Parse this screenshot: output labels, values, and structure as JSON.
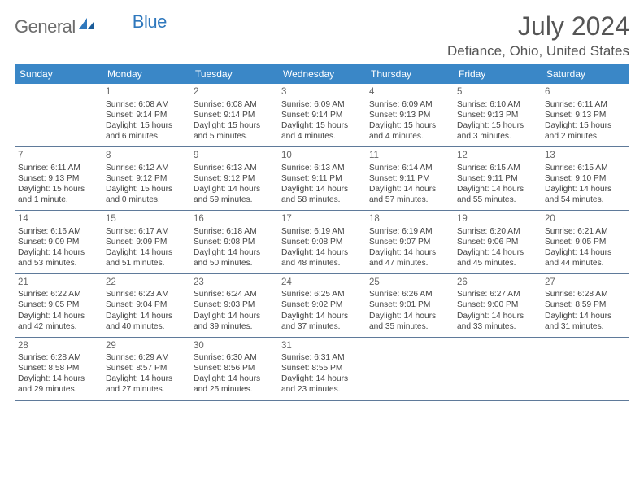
{
  "brand": {
    "left": "General",
    "right": "Blue"
  },
  "title": "July 2024",
  "location": "Defiance, Ohio, United States",
  "colors": {
    "headerBg": "#3a87c7",
    "rowBorder": "#5f7a9a"
  },
  "dayNames": [
    "Sunday",
    "Monday",
    "Tuesday",
    "Wednesday",
    "Thursday",
    "Friday",
    "Saturday"
  ],
  "weeks": [
    [
      null,
      {
        "n": "1",
        "sr": "Sunrise: 6:08 AM",
        "ss": "Sunset: 9:14 PM",
        "d1": "Daylight: 15 hours",
        "d2": "and 6 minutes."
      },
      {
        "n": "2",
        "sr": "Sunrise: 6:08 AM",
        "ss": "Sunset: 9:14 PM",
        "d1": "Daylight: 15 hours",
        "d2": "and 5 minutes."
      },
      {
        "n": "3",
        "sr": "Sunrise: 6:09 AM",
        "ss": "Sunset: 9:14 PM",
        "d1": "Daylight: 15 hours",
        "d2": "and 4 minutes."
      },
      {
        "n": "4",
        "sr": "Sunrise: 6:09 AM",
        "ss": "Sunset: 9:13 PM",
        "d1": "Daylight: 15 hours",
        "d2": "and 4 minutes."
      },
      {
        "n": "5",
        "sr": "Sunrise: 6:10 AM",
        "ss": "Sunset: 9:13 PM",
        "d1": "Daylight: 15 hours",
        "d2": "and 3 minutes."
      },
      {
        "n": "6",
        "sr": "Sunrise: 6:11 AM",
        "ss": "Sunset: 9:13 PM",
        "d1": "Daylight: 15 hours",
        "d2": "and 2 minutes."
      }
    ],
    [
      {
        "n": "7",
        "sr": "Sunrise: 6:11 AM",
        "ss": "Sunset: 9:13 PM",
        "d1": "Daylight: 15 hours",
        "d2": "and 1 minute."
      },
      {
        "n": "8",
        "sr": "Sunrise: 6:12 AM",
        "ss": "Sunset: 9:12 PM",
        "d1": "Daylight: 15 hours",
        "d2": "and 0 minutes."
      },
      {
        "n": "9",
        "sr": "Sunrise: 6:13 AM",
        "ss": "Sunset: 9:12 PM",
        "d1": "Daylight: 14 hours",
        "d2": "and 59 minutes."
      },
      {
        "n": "10",
        "sr": "Sunrise: 6:13 AM",
        "ss": "Sunset: 9:11 PM",
        "d1": "Daylight: 14 hours",
        "d2": "and 58 minutes."
      },
      {
        "n": "11",
        "sr": "Sunrise: 6:14 AM",
        "ss": "Sunset: 9:11 PM",
        "d1": "Daylight: 14 hours",
        "d2": "and 57 minutes."
      },
      {
        "n": "12",
        "sr": "Sunrise: 6:15 AM",
        "ss": "Sunset: 9:11 PM",
        "d1": "Daylight: 14 hours",
        "d2": "and 55 minutes."
      },
      {
        "n": "13",
        "sr": "Sunrise: 6:15 AM",
        "ss": "Sunset: 9:10 PM",
        "d1": "Daylight: 14 hours",
        "d2": "and 54 minutes."
      }
    ],
    [
      {
        "n": "14",
        "sr": "Sunrise: 6:16 AM",
        "ss": "Sunset: 9:09 PM",
        "d1": "Daylight: 14 hours",
        "d2": "and 53 minutes."
      },
      {
        "n": "15",
        "sr": "Sunrise: 6:17 AM",
        "ss": "Sunset: 9:09 PM",
        "d1": "Daylight: 14 hours",
        "d2": "and 51 minutes."
      },
      {
        "n": "16",
        "sr": "Sunrise: 6:18 AM",
        "ss": "Sunset: 9:08 PM",
        "d1": "Daylight: 14 hours",
        "d2": "and 50 minutes."
      },
      {
        "n": "17",
        "sr": "Sunrise: 6:19 AM",
        "ss": "Sunset: 9:08 PM",
        "d1": "Daylight: 14 hours",
        "d2": "and 48 minutes."
      },
      {
        "n": "18",
        "sr": "Sunrise: 6:19 AM",
        "ss": "Sunset: 9:07 PM",
        "d1": "Daylight: 14 hours",
        "d2": "and 47 minutes."
      },
      {
        "n": "19",
        "sr": "Sunrise: 6:20 AM",
        "ss": "Sunset: 9:06 PM",
        "d1": "Daylight: 14 hours",
        "d2": "and 45 minutes."
      },
      {
        "n": "20",
        "sr": "Sunrise: 6:21 AM",
        "ss": "Sunset: 9:05 PM",
        "d1": "Daylight: 14 hours",
        "d2": "and 44 minutes."
      }
    ],
    [
      {
        "n": "21",
        "sr": "Sunrise: 6:22 AM",
        "ss": "Sunset: 9:05 PM",
        "d1": "Daylight: 14 hours",
        "d2": "and 42 minutes."
      },
      {
        "n": "22",
        "sr": "Sunrise: 6:23 AM",
        "ss": "Sunset: 9:04 PM",
        "d1": "Daylight: 14 hours",
        "d2": "and 40 minutes."
      },
      {
        "n": "23",
        "sr": "Sunrise: 6:24 AM",
        "ss": "Sunset: 9:03 PM",
        "d1": "Daylight: 14 hours",
        "d2": "and 39 minutes."
      },
      {
        "n": "24",
        "sr": "Sunrise: 6:25 AM",
        "ss": "Sunset: 9:02 PM",
        "d1": "Daylight: 14 hours",
        "d2": "and 37 minutes."
      },
      {
        "n": "25",
        "sr": "Sunrise: 6:26 AM",
        "ss": "Sunset: 9:01 PM",
        "d1": "Daylight: 14 hours",
        "d2": "and 35 minutes."
      },
      {
        "n": "26",
        "sr": "Sunrise: 6:27 AM",
        "ss": "Sunset: 9:00 PM",
        "d1": "Daylight: 14 hours",
        "d2": "and 33 minutes."
      },
      {
        "n": "27",
        "sr": "Sunrise: 6:28 AM",
        "ss": "Sunset: 8:59 PM",
        "d1": "Daylight: 14 hours",
        "d2": "and 31 minutes."
      }
    ],
    [
      {
        "n": "28",
        "sr": "Sunrise: 6:28 AM",
        "ss": "Sunset: 8:58 PM",
        "d1": "Daylight: 14 hours",
        "d2": "and 29 minutes."
      },
      {
        "n": "29",
        "sr": "Sunrise: 6:29 AM",
        "ss": "Sunset: 8:57 PM",
        "d1": "Daylight: 14 hours",
        "d2": "and 27 minutes."
      },
      {
        "n": "30",
        "sr": "Sunrise: 6:30 AM",
        "ss": "Sunset: 8:56 PM",
        "d1": "Daylight: 14 hours",
        "d2": "and 25 minutes."
      },
      {
        "n": "31",
        "sr": "Sunrise: 6:31 AM",
        "ss": "Sunset: 8:55 PM",
        "d1": "Daylight: 14 hours",
        "d2": "and 23 minutes."
      },
      null,
      null,
      null
    ]
  ]
}
